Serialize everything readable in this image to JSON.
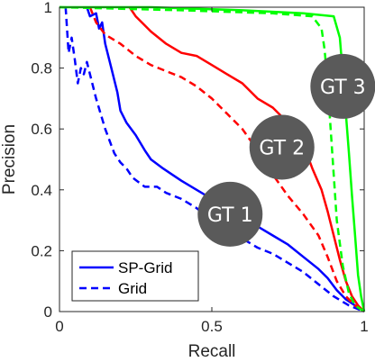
{
  "chart_data": {
    "type": "line",
    "title": "",
    "xlabel": "Recall",
    "ylabel": "Precision",
    "xlim": [
      0,
      1
    ],
    "ylim": [
      0,
      1
    ],
    "x_ticks": [
      0,
      0.5,
      1
    ],
    "y_ticks": [
      0,
      0.2,
      0.4,
      0.6,
      0.8,
      1
    ],
    "x_tick_labels": [
      "0",
      "0.5",
      "1"
    ],
    "y_tick_labels": [
      "0",
      "0.2",
      "0.4",
      "0.6",
      "0.8",
      "1"
    ],
    "grid": false,
    "legend": {
      "position": "bottom-left",
      "entries": [
        {
          "label": "SP-Grid",
          "style": "solid"
        },
        {
          "label": "Grid",
          "style": "dashed"
        }
      ]
    },
    "annotations": [
      {
        "text": "GT 1",
        "x": 0.56,
        "y": 0.32
      },
      {
        "text": "GT 2",
        "x": 0.73,
        "y": 0.54
      },
      {
        "text": "GT 3",
        "x": 0.93,
        "y": 0.74
      }
    ],
    "series": [
      {
        "group": "GT 1",
        "style": "solid",
        "color": "#0000ff",
        "points": [
          [
            0.09,
            1.0
          ],
          [
            0.1,
            0.97
          ],
          [
            0.12,
            0.98
          ],
          [
            0.13,
            0.93
          ],
          [
            0.14,
            0.95
          ],
          [
            0.15,
            0.88
          ],
          [
            0.17,
            0.8
          ],
          [
            0.19,
            0.72
          ],
          [
            0.2,
            0.66
          ],
          [
            0.22,
            0.62
          ],
          [
            0.25,
            0.58
          ],
          [
            0.28,
            0.53
          ],
          [
            0.3,
            0.5
          ],
          [
            0.34,
            0.47
          ],
          [
            0.37,
            0.45
          ],
          [
            0.4,
            0.43
          ],
          [
            0.45,
            0.4
          ],
          [
            0.5,
            0.37
          ],
          [
            0.55,
            0.33
          ],
          [
            0.6,
            0.31
          ],
          [
            0.65,
            0.28
          ],
          [
            0.7,
            0.25
          ],
          [
            0.75,
            0.22
          ],
          [
            0.8,
            0.18
          ],
          [
            0.85,
            0.14
          ],
          [
            0.88,
            0.11
          ],
          [
            0.91,
            0.07
          ],
          [
            0.94,
            0.04
          ],
          [
            0.97,
            0.02
          ],
          [
            1.0,
            0.0
          ]
        ]
      },
      {
        "group": "GT 1",
        "style": "dashed",
        "color": "#0000ff",
        "points": [
          [
            0.02,
            1.0
          ],
          [
            0.03,
            0.85
          ],
          [
            0.04,
            0.9
          ],
          [
            0.05,
            0.83
          ],
          [
            0.06,
            0.75
          ],
          [
            0.07,
            0.8
          ],
          [
            0.08,
            0.78
          ],
          [
            0.09,
            0.82
          ],
          [
            0.1,
            0.78
          ],
          [
            0.12,
            0.7
          ],
          [
            0.15,
            0.6
          ],
          [
            0.18,
            0.52
          ],
          [
            0.2,
            0.49
          ],
          [
            0.22,
            0.47
          ],
          [
            0.24,
            0.44
          ],
          [
            0.28,
            0.41
          ],
          [
            0.32,
            0.41
          ],
          [
            0.35,
            0.39
          ],
          [
            0.4,
            0.37
          ],
          [
            0.45,
            0.34
          ],
          [
            0.5,
            0.3
          ],
          [
            0.55,
            0.27
          ],
          [
            0.6,
            0.24
          ],
          [
            0.65,
            0.21
          ],
          [
            0.7,
            0.19
          ],
          [
            0.75,
            0.16
          ],
          [
            0.8,
            0.13
          ],
          [
            0.85,
            0.09
          ],
          [
            0.9,
            0.05
          ],
          [
            0.95,
            0.02
          ],
          [
            1.0,
            0.0
          ]
        ]
      },
      {
        "group": "GT 2",
        "style": "solid",
        "color": "#ff0000",
        "points": [
          [
            0.23,
            1.0
          ],
          [
            0.25,
            0.97
          ],
          [
            0.27,
            0.95
          ],
          [
            0.3,
            0.92
          ],
          [
            0.35,
            0.88
          ],
          [
            0.4,
            0.85
          ],
          [
            0.45,
            0.84
          ],
          [
            0.5,
            0.81
          ],
          [
            0.55,
            0.78
          ],
          [
            0.6,
            0.75
          ],
          [
            0.65,
            0.7
          ],
          [
            0.7,
            0.67
          ],
          [
            0.75,
            0.62
          ],
          [
            0.8,
            0.55
          ],
          [
            0.83,
            0.47
          ],
          [
            0.86,
            0.4
          ],
          [
            0.88,
            0.33
          ],
          [
            0.9,
            0.25
          ],
          [
            0.92,
            0.17
          ],
          [
            0.94,
            0.1
          ],
          [
            0.96,
            0.05
          ],
          [
            0.98,
            0.02
          ],
          [
            1.0,
            0.0
          ]
        ]
      },
      {
        "group": "GT 2",
        "style": "dashed",
        "color": "#ff0000",
        "points": [
          [
            0.1,
            1.0
          ],
          [
            0.12,
            0.95
          ],
          [
            0.15,
            0.91
          ],
          [
            0.2,
            0.88
          ],
          [
            0.25,
            0.84
          ],
          [
            0.3,
            0.81
          ],
          [
            0.35,
            0.79
          ],
          [
            0.4,
            0.77
          ],
          [
            0.45,
            0.74
          ],
          [
            0.5,
            0.7
          ],
          [
            0.55,
            0.65
          ],
          [
            0.6,
            0.6
          ],
          [
            0.65,
            0.53
          ],
          [
            0.7,
            0.45
          ],
          [
            0.75,
            0.38
          ],
          [
            0.8,
            0.32
          ],
          [
            0.85,
            0.25
          ],
          [
            0.88,
            0.18
          ],
          [
            0.91,
            0.1
          ],
          [
            0.94,
            0.05
          ],
          [
            0.97,
            0.02
          ],
          [
            1.0,
            0.0
          ]
        ]
      },
      {
        "group": "GT 3",
        "style": "solid",
        "color": "#00ff00",
        "points": [
          [
            0.0,
            1.0
          ],
          [
            0.3,
            1.0
          ],
          [
            0.6,
            0.99
          ],
          [
            0.8,
            0.98
          ],
          [
            0.9,
            0.97
          ],
          [
            0.92,
            0.9
          ],
          [
            0.93,
            0.78
          ],
          [
            0.94,
            0.65
          ],
          [
            0.95,
            0.52
          ],
          [
            0.96,
            0.38
          ],
          [
            0.97,
            0.25
          ],
          [
            0.98,
            0.12
          ],
          [
            0.99,
            0.05
          ],
          [
            1.0,
            0.0
          ]
        ]
      },
      {
        "group": "GT 3",
        "style": "dashed",
        "color": "#00ff00",
        "points": [
          [
            0.0,
            1.0
          ],
          [
            0.4,
            0.99
          ],
          [
            0.7,
            0.98
          ],
          [
            0.83,
            0.97
          ],
          [
            0.86,
            0.93
          ],
          [
            0.87,
            0.86
          ],
          [
            0.88,
            0.75
          ],
          [
            0.89,
            0.6
          ],
          [
            0.9,
            0.45
          ],
          [
            0.91,
            0.3
          ],
          [
            0.93,
            0.15
          ],
          [
            0.95,
            0.06
          ],
          [
            0.97,
            0.02
          ],
          [
            1.0,
            0.0
          ]
        ]
      }
    ]
  }
}
